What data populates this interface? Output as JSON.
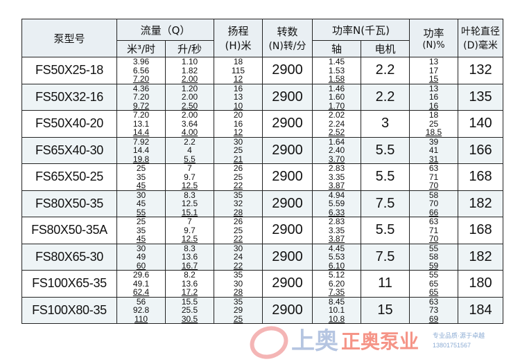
{
  "header": {
    "model": "泵型号",
    "flow": "流量（Q）",
    "flow_m3h": "米³/时",
    "flow_ls": "升/秒",
    "head": "扬程",
    "head_unit": "(H)米",
    "speed": "转数",
    "speed_unit": "(N)转/分",
    "power": "功率N(千瓦)",
    "power_shaft": "轴",
    "power_motor": "电机",
    "efficiency": "功率",
    "efficiency_unit": "(N)%",
    "impeller": "叶轮直径",
    "impeller_unit": "(D)毫米"
  },
  "rows": [
    {
      "model": "FS50X25-18",
      "q_m3h": [
        "3.96",
        "6.56",
        "7.20"
      ],
      "q_ls": [
        "1.10",
        "1.82",
        "2.00"
      ],
      "head": [
        "18",
        "115",
        "12"
      ],
      "speed": "2900",
      "shaft": [
        "1.45",
        "1.53",
        "1.58"
      ],
      "motor": "2.2",
      "eff": [
        "13",
        "17",
        "15"
      ],
      "impeller": "132"
    },
    {
      "model": "FS50X32-16",
      "q_m3h": [
        "4.36",
        "7.20",
        "9.72"
      ],
      "q_ls": [
        "1.20",
        "2.00",
        "2.50"
      ],
      "head": [
        "16",
        "13",
        "10"
      ],
      "speed": "2900",
      "shaft": [
        "1.46",
        "1.60",
        "1.70"
      ],
      "motor": "2.2",
      "eff": [
        "13",
        "16",
        "16"
      ],
      "impeller": "135"
    },
    {
      "model": "FS50X40-20",
      "q_m3h": [
        "7.20",
        "13.1",
        "14.4"
      ],
      "q_ls": [
        "2.00",
        "3.64",
        "4.00"
      ],
      "head": [
        "20",
        "16",
        "12"
      ],
      "speed": "2900",
      "shaft": [
        "2.02",
        "2.24",
        "2.52"
      ],
      "motor": "3",
      "eff": [
        "18",
        "25",
        "18.5"
      ],
      "impeller": "140"
    },
    {
      "model": "FS65X40-30",
      "q_m3h": [
        "7.92",
        "14.4",
        "19.8"
      ],
      "q_ls": [
        "2.2",
        "4",
        "5.5"
      ],
      "head": [
        "30",
        "25",
        "21"
      ],
      "speed": "2900",
      "shaft": [
        "1.64",
        "2.40",
        "3.70"
      ],
      "motor": "5.5",
      "eff": [
        "39",
        "41",
        "31"
      ],
      "impeller": "166"
    },
    {
      "model": "FS65X50-25",
      "q_m3h": [
        "25",
        "35",
        "45"
      ],
      "q_ls": [
        "7",
        "9.7",
        "12.5"
      ],
      "head": [
        "26",
        "25",
        "22"
      ],
      "speed": "2900",
      "shaft": [
        "2.83",
        "3.35",
        "3.87"
      ],
      "motor": "5.5",
      "eff": [
        "63",
        "71",
        "70"
      ],
      "impeller": "168"
    },
    {
      "model": "FS80X50-35",
      "q_m3h": [
        "30",
        "45",
        "55"
      ],
      "q_ls": [
        "8.3",
        "12.5",
        "15.1"
      ],
      "head": [
        "35",
        "32",
        "28"
      ],
      "speed": "2900",
      "shaft": [
        "4.94",
        "5.59",
        "6.33"
      ],
      "motor": "7.5",
      "eff": [
        "58",
        "70",
        "66"
      ],
      "impeller": "182"
    },
    {
      "model": "FS80X50-35A",
      "q_m3h": [
        "25",
        "35",
        "45"
      ],
      "q_ls": [
        "7",
        "9.7",
        "12.5"
      ],
      "head": [
        "26",
        "25",
        "22"
      ],
      "speed": "2900",
      "shaft": [
        "2.83",
        "3.35",
        "3.87"
      ],
      "motor": "5.5",
      "eff": [
        "63",
        "71",
        "70"
      ],
      "impeller": "168"
    },
    {
      "model": "FS80X65-30",
      "q_m3h": [
        "30",
        "49",
        "60"
      ],
      "q_ls": [
        "8.3",
        "13.6",
        "16.7"
      ],
      "head": [
        "30",
        "24",
        "22"
      ],
      "speed": "2900",
      "shaft": [
        "4.45",
        "5.53",
        "6.10"
      ],
      "motor": "7.5",
      "eff": [
        "55",
        "58",
        "59"
      ],
      "impeller": "182"
    },
    {
      "model": "FS100X65-35",
      "q_m3h": [
        "29.6",
        "49.1",
        "62.4"
      ],
      "q_ls": [
        "8.2",
        "13.6",
        "17.2"
      ],
      "head": [
        "35",
        "30",
        "28"
      ],
      "speed": "2900",
      "shaft": [
        "5.12",
        "6.20",
        "7.35"
      ],
      "motor": "11",
      "eff": [
        "55",
        "65",
        "65"
      ],
      "impeller": "180"
    },
    {
      "model": "FS100X80-35",
      "q_m3h": [
        "56",
        "92.8",
        "110"
      ],
      "q_ls": [
        "15.5",
        "25.5",
        "30.5"
      ],
      "head": [
        "35",
        "29",
        "25"
      ],
      "speed": "2900",
      "shaft": [
        "8.45",
        "10.1",
        "10.8"
      ],
      "motor": "15",
      "eff": [
        "63",
        "73",
        "69"
      ],
      "impeller": "184"
    }
  ],
  "watermark": {
    "line1": "上奥",
    "line2": "正奥泵业",
    "line3": "专业品质·源于卓越",
    "phone": "13801751567"
  }
}
